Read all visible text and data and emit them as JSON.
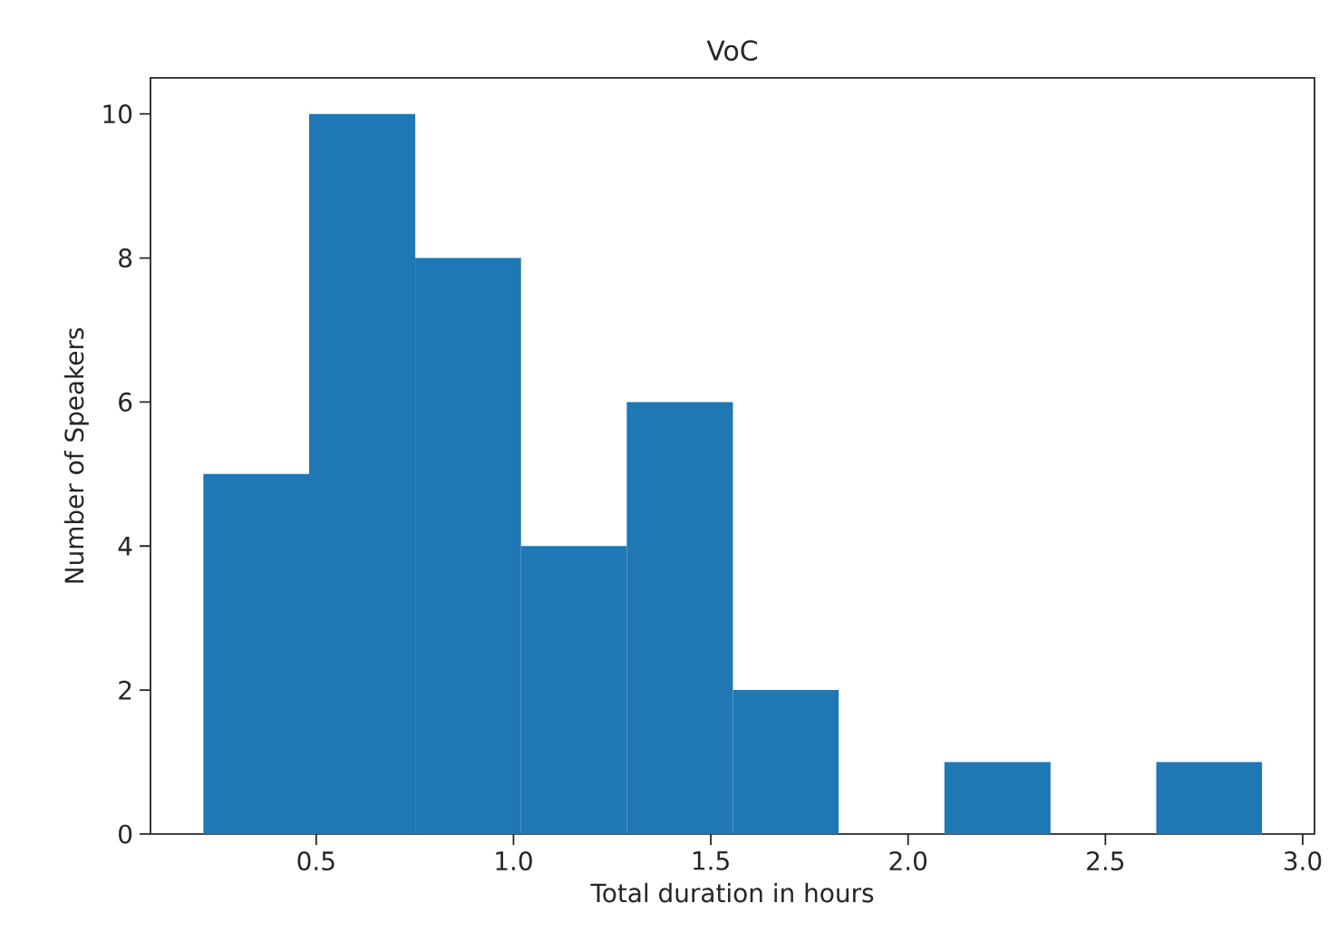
{
  "chart_data": {
    "type": "histogram",
    "title": "VoC",
    "xlabel": "Total duration in hours",
    "ylabel": "Number of Speakers",
    "bins": [
      0.214,
      0.482,
      0.751,
      1.019,
      1.287,
      1.556,
      1.824,
      2.092,
      2.361,
      2.629,
      2.897
    ],
    "values": [
      5,
      10,
      8,
      4,
      6,
      2,
      0,
      1,
      0,
      1
    ],
    "color": "#1f77b4",
    "xlim": [
      0.08,
      3.03
    ],
    "ylim": [
      0,
      10.5
    ],
    "xticks": [
      0.5,
      {
        "value": 1.0,
        "label": "1.0"
      },
      1.5,
      {
        "value": 2.0,
        "label": "2.0"
      },
      2.5,
      {
        "value": 3.0,
        "label": "3.0"
      }
    ],
    "yticks": [
      0,
      2,
      4,
      6,
      8,
      10
    ]
  }
}
